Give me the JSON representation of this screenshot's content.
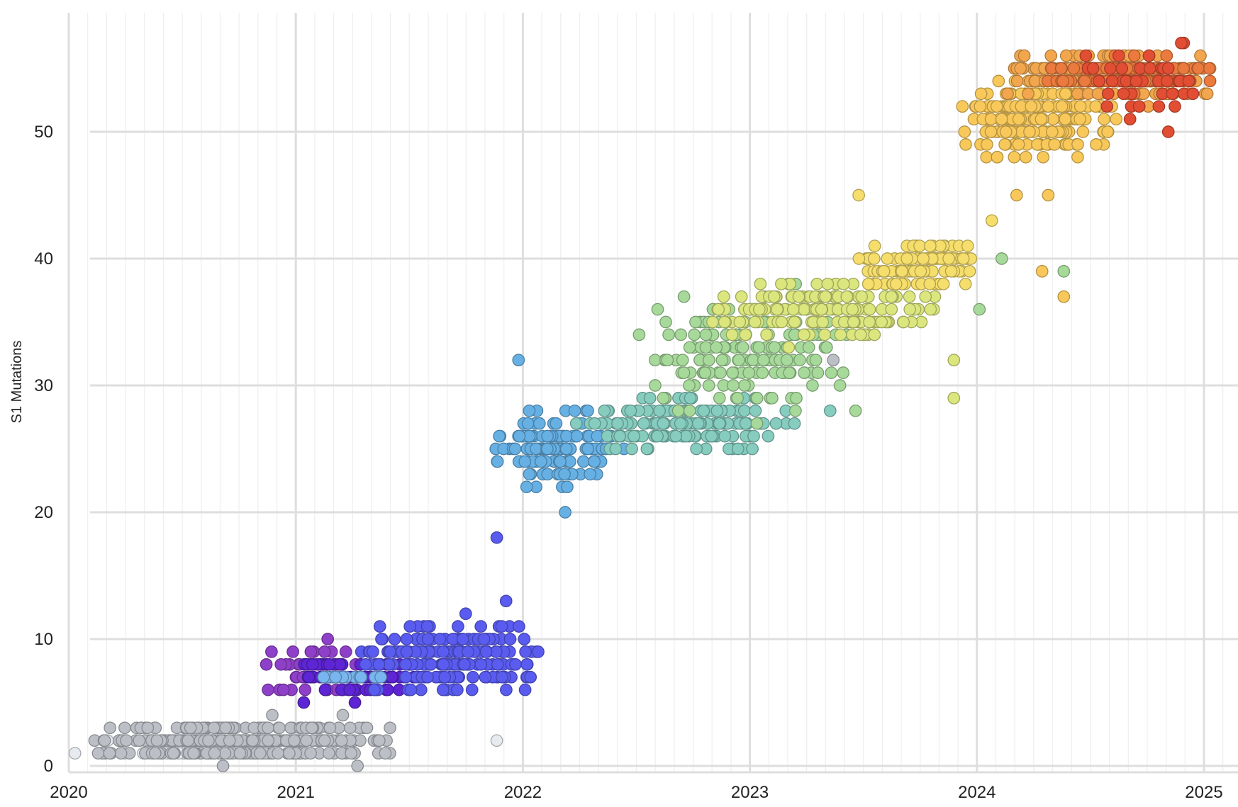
{
  "chart_data": {
    "type": "scatter",
    "title": "",
    "xlabel": "",
    "ylabel": "S1 Mutations",
    "x_ticks": [
      "2020",
      "2021",
      "2022",
      "2023",
      "2024",
      "2025"
    ],
    "y_ticks": [
      0,
      10,
      20,
      30,
      40,
      50
    ],
    "xlim": [
      "2020-01-01",
      "2025-02-01"
    ],
    "ylim": [
      -0.5,
      59
    ],
    "grid": true,
    "legend": "none",
    "clusters": [
      {
        "color": "#e7eaee",
        "x": [
          "2020-01-05",
          "2021-01-30"
        ],
        "y": [
          0,
          3
        ],
        "n": 60
      },
      {
        "color": "#bcc0c6",
        "x": [
          "2020-01-20",
          "2021-06-25"
        ],
        "y": [
          0,
          4
        ],
        "n": 330
      },
      {
        "color": "#8f40c8",
        "x": [
          "2020-10-25",
          "2021-05-15"
        ],
        "y": [
          5,
          10
        ],
        "n": 60
      },
      {
        "color": "#5d25d3",
        "x": [
          "2020-12-15",
          "2021-07-25"
        ],
        "y": [
          5,
          9
        ],
        "n": 80
      },
      {
        "color": "#5a5cf0",
        "x": [
          "2021-04-01",
          "2022-02-20"
        ],
        "y": [
          5,
          12
        ],
        "n": 210
      },
      {
        "color": "#79b6ef",
        "x": [
          "2021-01-15",
          "2021-06-15"
        ],
        "y": [
          7,
          7
        ],
        "n": 14
      },
      {
        "color": "#66b0e4",
        "x": [
          "2021-11-10",
          "2022-06-20"
        ],
        "y": [
          21,
          29
        ],
        "n": 140
      },
      {
        "color": "#86ccbf",
        "x": [
          "2022-03-15",
          "2023-03-20"
        ],
        "y": [
          24,
          30
        ],
        "n": 160
      },
      {
        "color": "#a6d99a",
        "x": [
          "2022-07-01",
          "2023-07-01"
        ],
        "y": [
          26,
          39
        ],
        "n": 160
      },
      {
        "color": "#dbe67e",
        "x": [
          "2022-10-01",
          "2023-11-20"
        ],
        "y": [
          33,
          39
        ],
        "n": 170
      },
      {
        "color": "#f6de6c",
        "x": [
          "2023-06-10",
          "2024-01-20"
        ],
        "y": [
          37,
          42
        ],
        "n": 120
      },
      {
        "color": "#f8c95a",
        "x": [
          "2023-11-25",
          "2024-09-01"
        ],
        "y": [
          47,
          55
        ],
        "n": 220
      },
      {
        "color": "#f2a74e",
        "x": [
          "2024-02-01",
          "2025-01-30"
        ],
        "y": [
          52,
          57
        ],
        "n": 200
      },
      {
        "color": "#ea7a3d",
        "x": [
          "2024-04-20",
          "2025-01-30"
        ],
        "y": [
          53,
          56
        ],
        "n": 120
      },
      {
        "color": "#e24e33",
        "x": [
          "2024-06-01",
          "2025-01-25"
        ],
        "y": [
          49,
          59
        ],
        "n": 40
      }
    ],
    "outliers": [
      {
        "x": "2021-11-20",
        "y": 18,
        "color": "#5a5cf0"
      },
      {
        "x": "2021-12-05",
        "y": 13,
        "color": "#5a5cf0"
      },
      {
        "x": "2022-03-10",
        "y": 20,
        "color": "#66b0e4"
      },
      {
        "x": "2021-12-25",
        "y": 32,
        "color": "#66b0e4"
      },
      {
        "x": "2023-05-10",
        "y": 28,
        "color": "#86ccbf"
      },
      {
        "x": "2023-05-15",
        "y": 32,
        "color": "#bcc0c6"
      },
      {
        "x": "2023-06-25",
        "y": 45,
        "color": "#f6de6c"
      },
      {
        "x": "2023-11-25",
        "y": 29,
        "color": "#dbe67e"
      },
      {
        "x": "2024-01-25",
        "y": 43,
        "color": "#f6de6c"
      },
      {
        "x": "2024-02-10",
        "y": 40,
        "color": "#a6d99a"
      },
      {
        "x": "2024-04-15",
        "y": 39,
        "color": "#f8c95a"
      },
      {
        "x": "2024-05-20",
        "y": 37,
        "color": "#f8c95a"
      },
      {
        "x": "2024-05-20",
        "y": 39,
        "color": "#a6d99a"
      },
      {
        "x": "2024-03-05",
        "y": 45,
        "color": "#f8c95a"
      },
      {
        "x": "2024-04-25",
        "y": 45,
        "color": "#f8c95a"
      },
      {
        "x": "2024-01-05",
        "y": 36,
        "color": "#a6d99a"
      },
      {
        "x": "2023-11-25",
        "y": 32,
        "color": "#dbe67e"
      },
      {
        "x": "2021-11-20",
        "y": 2,
        "color": "#e7eaee"
      }
    ]
  }
}
